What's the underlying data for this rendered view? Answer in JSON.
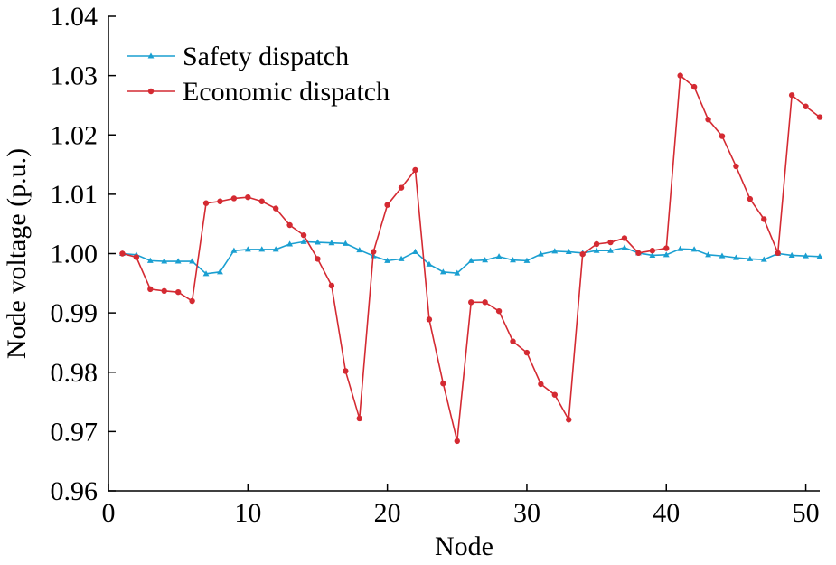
{
  "chart_data": {
    "type": "line",
    "title": "",
    "xlabel": "Node",
    "ylabel": "Node voltage (p.u.)",
    "xlim": [
      0,
      51
    ],
    "ylim": [
      0.96,
      1.04
    ],
    "x_ticks": [
      0,
      10,
      20,
      30,
      40,
      50
    ],
    "y_ticks": [
      0.96,
      0.97,
      0.98,
      0.99,
      1.0,
      1.01,
      1.02,
      1.03,
      1.04
    ],
    "x_tick_labels": [
      "0",
      "10",
      "20",
      "30",
      "40",
      "50"
    ],
    "y_tick_labels": [
      "0.96",
      "0.97",
      "0.98",
      "0.99",
      "1.00",
      "1.01",
      "1.02",
      "1.03",
      "1.04"
    ],
    "grid": false,
    "legend_position": "top-left",
    "x": [
      1,
      2,
      3,
      4,
      5,
      6,
      7,
      8,
      9,
      10,
      11,
      12,
      13,
      14,
      15,
      16,
      17,
      18,
      19,
      20,
      21,
      22,
      23,
      24,
      25,
      26,
      27,
      28,
      29,
      30,
      31,
      32,
      33,
      34,
      35,
      36,
      37,
      38,
      39,
      40,
      41,
      42,
      43,
      44,
      45,
      46,
      47,
      48,
      49,
      50,
      51
    ],
    "series": [
      {
        "name": "Safety dispatch",
        "color": "#1a9fd1",
        "marker": "triangle",
        "values": [
          1.0,
          0.9998,
          0.9988,
          0.9987,
          0.9987,
          0.9987,
          0.9966,
          0.9969,
          1.0005,
          1.0007,
          1.0007,
          1.0007,
          1.0016,
          1.002,
          1.0019,
          1.0018,
          1.0017,
          1.0006,
          0.9996,
          0.9988,
          0.9991,
          1.0003,
          0.9982,
          0.9969,
          0.9967,
          0.9988,
          0.9989,
          0.9995,
          0.9989,
          0.9988,
          0.9999,
          1.0004,
          1.0003,
          1.0001,
          1.0005,
          1.0005,
          1.001,
          1.0001,
          0.9997,
          0.9998,
          1.0008,
          1.0007,
          0.9998,
          0.9996,
          0.9993,
          0.9991,
          0.999,
          1.0,
          0.9997,
          0.9996,
          0.9995
        ]
      },
      {
        "name": "Economic dispatch",
        "color": "#d42a32",
        "marker": "circle",
        "values": [
          1.0,
          0.9994,
          0.994,
          0.9937,
          0.9935,
          0.992,
          1.0085,
          1.0088,
          1.0093,
          1.0095,
          1.0088,
          1.0076,
          1.0048,
          1.0031,
          0.9991,
          0.9946,
          0.9802,
          0.9722,
          1.0003,
          1.0082,
          1.0111,
          1.0141,
          0.9889,
          0.9781,
          0.9684,
          0.9918,
          0.9918,
          0.9903,
          0.9852,
          0.9833,
          0.978,
          0.9762,
          0.972,
          0.9999,
          1.0016,
          1.0019,
          1.0026,
          1.0001,
          1.0005,
          1.0009,
          1.03,
          1.0281,
          1.0226,
          1.0198,
          1.0147,
          1.0092,
          1.0058,
          1.0001,
          1.0267,
          1.0248,
          1.023
        ]
      }
    ]
  }
}
